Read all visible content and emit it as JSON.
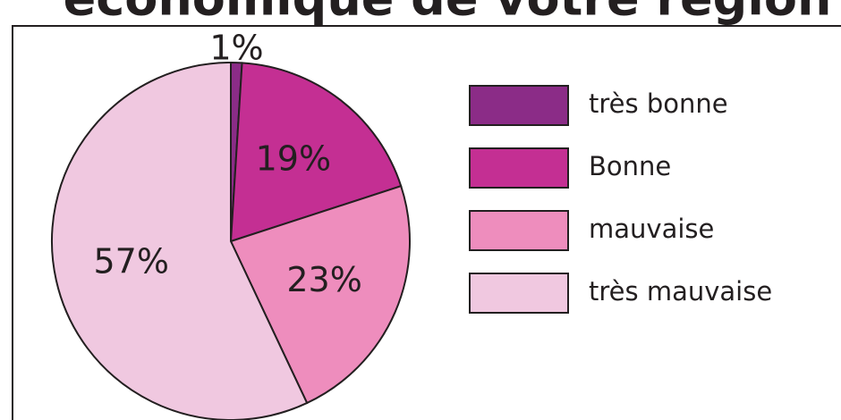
{
  "chart_data": {
    "type": "pie",
    "title": "économique de votre région",
    "categories": [
      "très bonne",
      "Bonne",
      "mauvaise",
      "très mauvaise"
    ],
    "values": [
      1,
      19,
      23,
      57
    ],
    "value_labels": [
      "1%",
      "19%",
      "23%",
      "57%"
    ],
    "colors": [
      "#8b2c87",
      "#c42f93",
      "#ee8dbd",
      "#f0c8e0"
    ],
    "legend": "right"
  }
}
